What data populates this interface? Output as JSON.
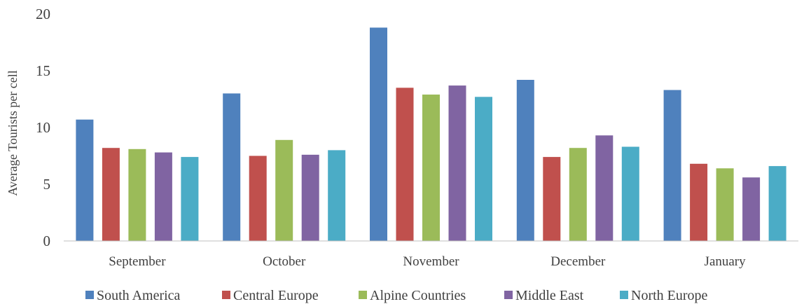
{
  "chart_data": {
    "type": "bar",
    "title": "",
    "xlabel": "",
    "ylabel": "Average  Tourists per cell",
    "ylim": [
      0,
      20
    ],
    "yticks": [
      0,
      5,
      10,
      15,
      20
    ],
    "grid": false,
    "legend_position": "bottom",
    "categories": [
      "September",
      "October",
      "November",
      "December",
      "January"
    ],
    "series": [
      {
        "name": "South America",
        "color": "#4F81BD",
        "values": [
          10.7,
          13.0,
          18.8,
          14.2,
          13.3
        ]
      },
      {
        "name": "Central Europe",
        "color": "#C0504D",
        "values": [
          8.2,
          7.5,
          13.5,
          7.4,
          6.8
        ]
      },
      {
        "name": "Alpine Countries",
        "color": "#9BBB59",
        "values": [
          8.1,
          8.9,
          12.9,
          8.2,
          6.4
        ]
      },
      {
        "name": "Middle East",
        "color": "#8064A2",
        "values": [
          7.8,
          7.6,
          13.7,
          9.3,
          5.6
        ]
      },
      {
        "name": "North Europe",
        "color": "#4BACC6",
        "values": [
          7.4,
          8.0,
          12.7,
          8.3,
          6.6
        ]
      }
    ]
  }
}
